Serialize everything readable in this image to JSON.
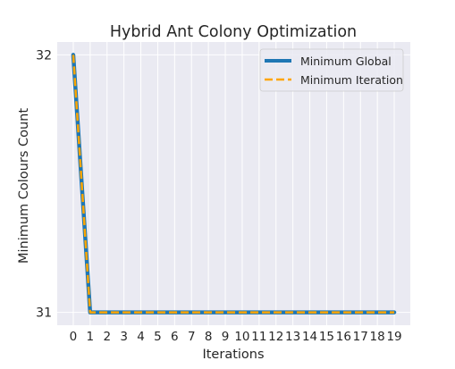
{
  "chart_data": {
    "type": "line",
    "title": "Hybrid Ant Colony Optimization",
    "xlabel": "Iterations",
    "ylabel": "Minimum Colours Count",
    "x": [
      0,
      1,
      2,
      3,
      4,
      5,
      6,
      7,
      8,
      9,
      10,
      11,
      12,
      13,
      14,
      15,
      16,
      17,
      18,
      19
    ],
    "x_ticks": [
      "0",
      "1",
      "2",
      "3",
      "4",
      "5",
      "6",
      "7",
      "8",
      "9",
      "10",
      "11",
      "12",
      "13",
      "14",
      "15",
      "16",
      "17",
      "18",
      "19"
    ],
    "y_ticks": [
      "31",
      "32"
    ],
    "xlim": [
      -0.95,
      19.95
    ],
    "ylim": [
      30.95,
      32.05
    ],
    "grid": true,
    "legend_position": "top-right",
    "background_color": "#EAEAF2",
    "series": [
      {
        "name": "Minimum Global",
        "color": "#1F77B4",
        "style": "solid",
        "values": [
          32,
          31,
          31,
          31,
          31,
          31,
          31,
          31,
          31,
          31,
          31,
          31,
          31,
          31,
          31,
          31,
          31,
          31,
          31,
          31
        ]
      },
      {
        "name": "Minimum Iteration",
        "color": "#FFA500",
        "style": "dashed",
        "values": [
          32,
          31,
          31,
          31,
          31,
          31,
          31,
          31,
          31,
          31,
          31,
          31,
          31,
          31,
          31,
          31,
          31,
          31,
          31,
          31
        ]
      }
    ]
  }
}
